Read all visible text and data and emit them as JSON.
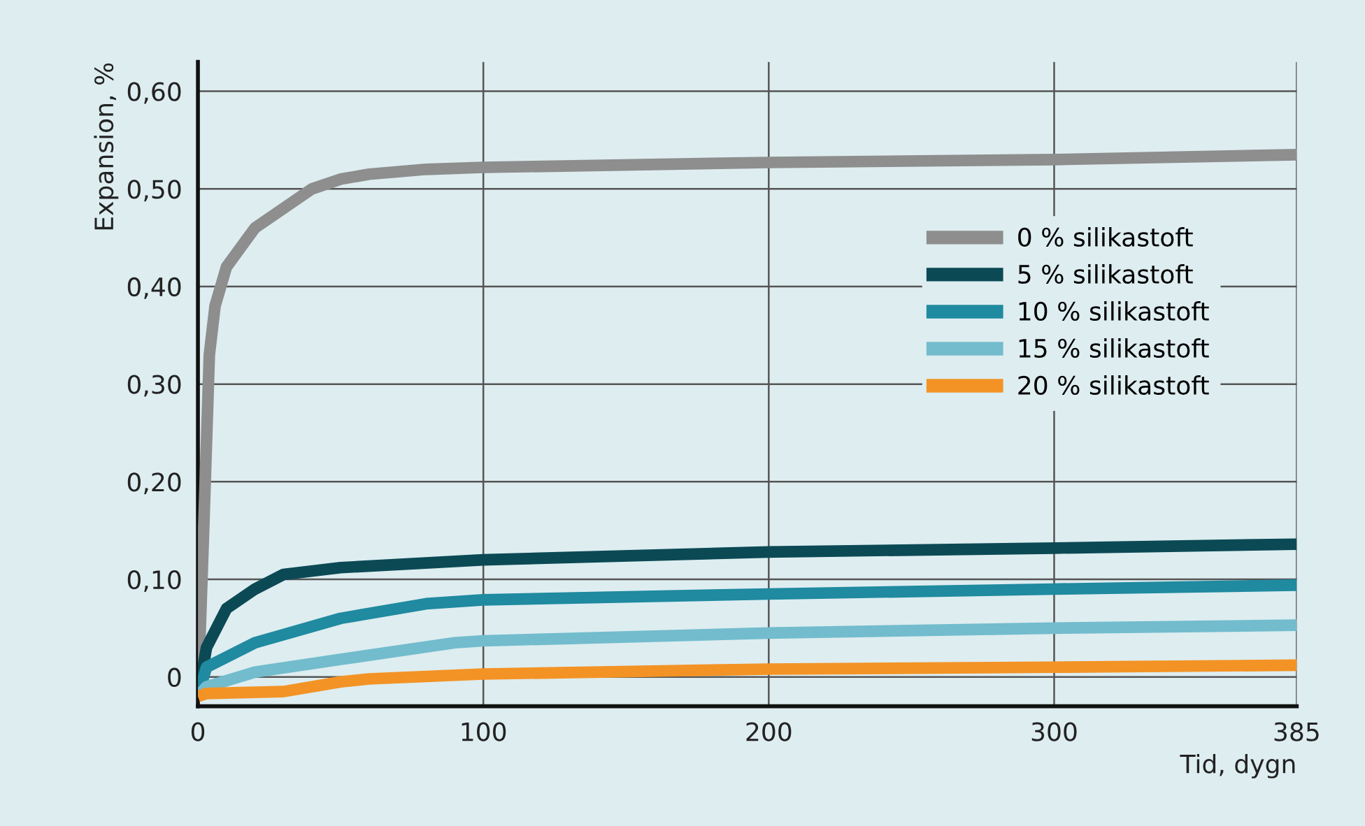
{
  "chart_data": {
    "type": "line",
    "xlabel": "Tid, dygn",
    "ylabel": "Expansion, %",
    "xlim": [
      0,
      385
    ],
    "xticks": [
      0,
      100,
      200,
      300,
      385
    ],
    "ylim": [
      -0.03,
      0.63
    ],
    "yticks": [
      {
        "value": 0,
        "label": "0"
      },
      {
        "value": 0.1,
        "label": "0,10"
      },
      {
        "value": 0.2,
        "label": "0,20"
      },
      {
        "value": 0.3,
        "label": "0,30"
      },
      {
        "value": 0.4,
        "label": "0,40"
      },
      {
        "value": 0.5,
        "label": "0,50"
      },
      {
        "value": 0.6,
        "label": "0,60"
      }
    ],
    "grid": true,
    "legend": "top right",
    "marker": "none",
    "line_style": "solid",
    "series": [
      {
        "name": "0 % silikastoft",
        "color": "#8e8e8e",
        "x": [
          0,
          2,
          4,
          6,
          10,
          20,
          30,
          40,
          50,
          60,
          80,
          100,
          200,
          300,
          385
        ],
        "values": [
          -0.02,
          0.15,
          0.33,
          0.38,
          0.42,
          0.46,
          0.48,
          0.5,
          0.51,
          0.515,
          0.52,
          0.522,
          0.527,
          0.53,
          0.535
        ]
      },
      {
        "name": "5 % silikastoft",
        "color": "#0b4a55",
        "x": [
          0,
          3,
          10,
          20,
          30,
          50,
          100,
          200,
          300,
          385
        ],
        "values": [
          -0.02,
          0.03,
          0.07,
          0.09,
          0.105,
          0.112,
          0.12,
          0.128,
          0.132,
          0.136
        ]
      },
      {
        "name": "10 % silikastoft",
        "color": "#1f8aa0",
        "x": [
          0,
          3,
          20,
          50,
          80,
          100,
          200,
          300,
          385
        ],
        "values": [
          -0.02,
          0.01,
          0.035,
          0.06,
          0.075,
          0.079,
          0.085,
          0.09,
          0.094
        ]
      },
      {
        "name": "15 % silikastoft",
        "color": "#72bccd",
        "x": [
          0,
          3,
          20,
          50,
          90,
          100,
          200,
          300,
          385
        ],
        "values": [
          -0.02,
          -0.01,
          0.005,
          0.018,
          0.035,
          0.037,
          0.045,
          0.05,
          0.053
        ]
      },
      {
        "name": "20 % silikastoft",
        "color": "#f39325",
        "x": [
          0,
          3,
          30,
          50,
          60,
          100,
          200,
          300,
          385
        ],
        "values": [
          -0.02,
          -0.017,
          -0.015,
          -0.005,
          -0.002,
          0.003,
          0.008,
          0.01,
          0.012
        ]
      }
    ]
  }
}
